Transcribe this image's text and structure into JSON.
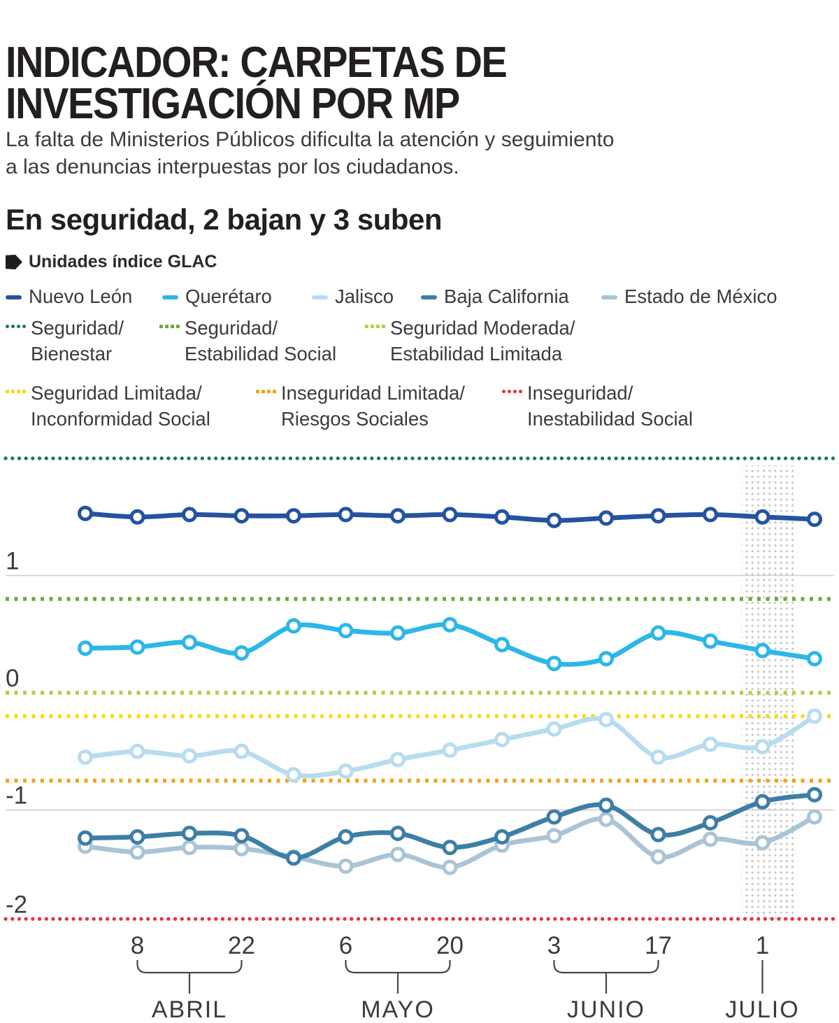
{
  "page": {
    "title_line1": "INDICADOR: CARPETAS DE",
    "title_line2": "INVESTIGACIÓN POR MP",
    "subtitle_line1": "La falta de Ministerios Públicos dificulta la atención y seguimiento",
    "subtitle_line2": "a las denuncias interpuestas por los ciudadanos.",
    "section_title": "En seguridad, 2 bajan y 3 suben",
    "unit_label": "Unidades índice GLAC"
  },
  "legend_series": [
    {
      "name": "Nuevo León",
      "color": "#2453a0"
    },
    {
      "name": "Querétaro",
      "color": "#2cb7e8"
    },
    {
      "name": "Jalisco",
      "color": "#b7dcf0"
    },
    {
      "name": "Baja California",
      "color": "#3d7ea6"
    },
    {
      "name": "Estado de México",
      "color": "#aac4d5"
    }
  ],
  "legend_thresholds": [
    {
      "line1": "Seguridad/",
      "line2": "Bienestar",
      "color": "#1d7a48",
      "dot_style": "round"
    },
    {
      "line1": "Seguridad/",
      "line2": "Estabilidad Social",
      "color": "#6aa83c",
      "dot_style": "square"
    },
    {
      "line1": "Seguridad Moderada/",
      "line2": "Estabilidad Limitada",
      "color": "#b9cb44",
      "dot_style": "square"
    },
    {
      "line1": "Seguridad Limitada/",
      "line2": "Inconformidad Social",
      "color": "#fdd712",
      "dot_style": "square"
    },
    {
      "line1": "Inseguridad Limitada/",
      "line2": "Riesgos Sociales",
      "color": "#f4a21b",
      "dot_style": "square"
    },
    {
      "line1": "Inseguridad/",
      "line2": "Inestabilidad Social",
      "color": "#e63238",
      "dot_style": "round"
    }
  ],
  "chart_data": {
    "type": "line",
    "title": "En seguridad, 2 bajan y 3 suben",
    "ylabel": "Unidades índice GLAC",
    "ylim": [
      -2.1,
      2.1
    ],
    "y_ticks": [
      1,
      0,
      -1,
      -2
    ],
    "grid": "horizontal-at-1-and-minus-1",
    "legend_position": "top",
    "n_points": 15,
    "y_axis": [
      {
        "text": "1",
        "value": 1,
        "gridline": true,
        "line_value": 1
      },
      {
        "text": "0",
        "value": 0,
        "gridline": false,
        "line_value": 0
      },
      {
        "text": "-1",
        "value": -1,
        "gridline": true,
        "line_value": -1
      },
      {
        "text": "-2",
        "value": -2,
        "gridline": false,
        "line_value": -1.93
      }
    ],
    "x_ticks": [
      {
        "point": 2,
        "label": "8"
      },
      {
        "point": 4,
        "label": "22"
      },
      {
        "point": 6,
        "label": "6"
      },
      {
        "point": 8,
        "label": "20"
      },
      {
        "point": 10,
        "label": "3"
      },
      {
        "point": 12,
        "label": "17"
      },
      {
        "point": 14,
        "label": "1"
      }
    ],
    "months": [
      {
        "label": "ABRIL",
        "from_point": 2,
        "to_point": 4
      },
      {
        "label": "MAYO",
        "from_point": 6,
        "to_point": 8
      },
      {
        "label": "JUNIO",
        "from_point": 10,
        "to_point": 12
      },
      {
        "label": "JULIO",
        "at_point": 14
      }
    ],
    "series": [
      {
        "name": "Nuevo León",
        "color": "#2453a0",
        "values": [
          1.53,
          1.5,
          1.52,
          1.51,
          1.51,
          1.52,
          1.51,
          1.52,
          1.5,
          1.47,
          1.49,
          1.51,
          1.52,
          1.5,
          1.48
        ]
      },
      {
        "name": "Querétaro",
        "color": "#2cb7e8",
        "values": [
          0.38,
          0.39,
          0.43,
          0.34,
          0.57,
          0.53,
          0.51,
          0.58,
          0.41,
          0.25,
          0.29,
          0.51,
          0.44,
          0.36,
          0.29
        ]
      },
      {
        "name": "Jalisco",
        "color": "#b7dcf0",
        "values": [
          -0.55,
          -0.5,
          -0.54,
          -0.5,
          -0.7,
          -0.67,
          -0.57,
          -0.49,
          -0.4,
          -0.31,
          -0.23,
          -0.55,
          -0.44,
          -0.46,
          -0.2
        ]
      },
      {
        "name": "Baja California",
        "color": "#3d7ea6",
        "values": [
          -1.24,
          -1.23,
          -1.2,
          -1.22,
          -1.41,
          -1.23,
          -1.2,
          -1.32,
          -1.23,
          -1.06,
          -0.96,
          -1.21,
          -1.11,
          -0.93,
          -0.87
        ]
      },
      {
        "name": "Estado de México",
        "color": "#aac4d5",
        "values": [
          -1.31,
          -1.36,
          -1.32,
          -1.33,
          -1.4,
          -1.48,
          -1.38,
          -1.49,
          -1.3,
          -1.22,
          -1.08,
          -1.4,
          -1.25,
          -1.28,
          -1.06
        ]
      }
    ],
    "thresholds": [
      {
        "name": "Seguridad/Bienestar",
        "value": 2.0,
        "color": "#1d7a48",
        "style": "round"
      },
      {
        "name": "Seguridad/Estabilidad Social",
        "value": 0.8,
        "color": "#6aa83c",
        "style": "square"
      },
      {
        "name": "Seguridad Moderada/Estabilidad Limitada",
        "value": 0.0,
        "color": "#b9cb44",
        "style": "square"
      },
      {
        "name": "Seguridad Limitada/Inconformidad Social",
        "value": -0.2,
        "color": "#fdd712",
        "style": "square"
      },
      {
        "name": "Inseguridad Limitada/Riesgos Sociales",
        "value": -0.75,
        "color": "#f4a21b",
        "style": "square"
      },
      {
        "name": "Inseguridad/Inestabilidad Social",
        "value": -1.93,
        "color": "#e63238",
        "style": "round"
      }
    ],
    "highlight_band": {
      "from_point": 13.6,
      "to_point": 14.6,
      "dot_color": "#c8c8c8"
    }
  }
}
